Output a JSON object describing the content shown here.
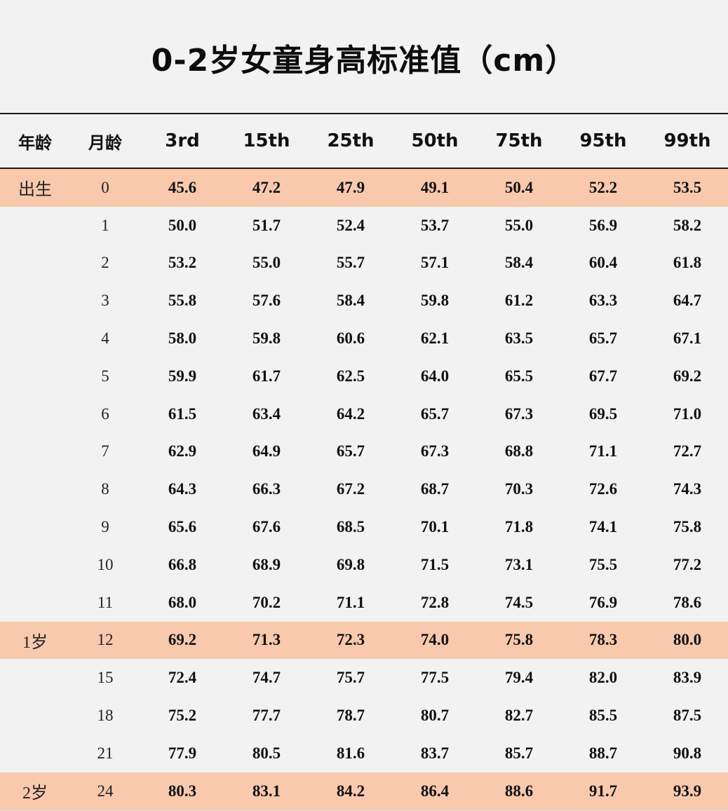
{
  "title": "0-2岁女童身高标准值（cm）",
  "highlight_color": "#f8c9ad",
  "headers": [
    "年龄",
    "月龄",
    "3rd",
    "15th",
    "25th",
    "50th",
    "75th",
    "95th",
    "99th"
  ],
  "rows": [
    {
      "age": "出生",
      "month": "0",
      "values": [
        "45.6",
        "47.2",
        "47.9",
        "49.1",
        "50.4",
        "52.2",
        "53.5"
      ]
    },
    {
      "age": "",
      "month": "1",
      "values": [
        "50.0",
        "51.7",
        "52.4",
        "53.7",
        "55.0",
        "56.9",
        "58.2"
      ]
    },
    {
      "age": "",
      "month": "2",
      "values": [
        "53.2",
        "55.0",
        "55.7",
        "57.1",
        "58.4",
        "60.4",
        "61.8"
      ]
    },
    {
      "age": "",
      "month": "3",
      "values": [
        "55.8",
        "57.6",
        "58.4",
        "59.8",
        "61.2",
        "63.3",
        "64.7"
      ]
    },
    {
      "age": "",
      "month": "4",
      "values": [
        "58.0",
        "59.8",
        "60.6",
        "62.1",
        "63.5",
        "65.7",
        "67.1"
      ]
    },
    {
      "age": "",
      "month": "5",
      "values": [
        "59.9",
        "61.7",
        "62.5",
        "64.0",
        "65.5",
        "67.7",
        "69.2"
      ]
    },
    {
      "age": "",
      "month": "6",
      "values": [
        "61.5",
        "63.4",
        "64.2",
        "65.7",
        "67.3",
        "69.5",
        "71.0"
      ]
    },
    {
      "age": "",
      "month": "7",
      "values": [
        "62.9",
        "64.9",
        "65.7",
        "67.3",
        "68.8",
        "71.1",
        "72.7"
      ]
    },
    {
      "age": "",
      "month": "8",
      "values": [
        "64.3",
        "66.3",
        "67.2",
        "68.7",
        "70.3",
        "72.6",
        "74.3"
      ]
    },
    {
      "age": "",
      "month": "9",
      "values": [
        "65.6",
        "67.6",
        "68.5",
        "70.1",
        "71.8",
        "74.1",
        "75.8"
      ]
    },
    {
      "age": "",
      "month": "10",
      "values": [
        "66.8",
        "68.9",
        "69.8",
        "71.5",
        "73.1",
        "75.5",
        "77.2"
      ]
    },
    {
      "age": "",
      "month": "11",
      "values": [
        "68.0",
        "70.2",
        "71.1",
        "72.8",
        "74.5",
        "76.9",
        "78.6"
      ]
    },
    {
      "age": "1岁",
      "month": "12",
      "values": [
        "69.2",
        "71.3",
        "72.3",
        "74.0",
        "75.8",
        "78.3",
        "80.0"
      ]
    },
    {
      "age": "",
      "month": "15",
      "values": [
        "72.4",
        "74.7",
        "75.7",
        "77.5",
        "79.4",
        "82.0",
        "83.9"
      ]
    },
    {
      "age": "",
      "month": "18",
      "values": [
        "75.2",
        "77.7",
        "78.7",
        "80.7",
        "82.7",
        "85.5",
        "87.5"
      ]
    },
    {
      "age": "",
      "month": "21",
      "values": [
        "77.9",
        "80.5",
        "81.6",
        "83.7",
        "85.7",
        "88.7",
        "90.8"
      ]
    },
    {
      "age": "2岁",
      "month": "24",
      "values": [
        "80.3",
        "83.1",
        "84.2",
        "86.4",
        "88.6",
        "91.7",
        "93.9"
      ]
    }
  ],
  "highlighted_rows": [
    0,
    12,
    16
  ]
}
